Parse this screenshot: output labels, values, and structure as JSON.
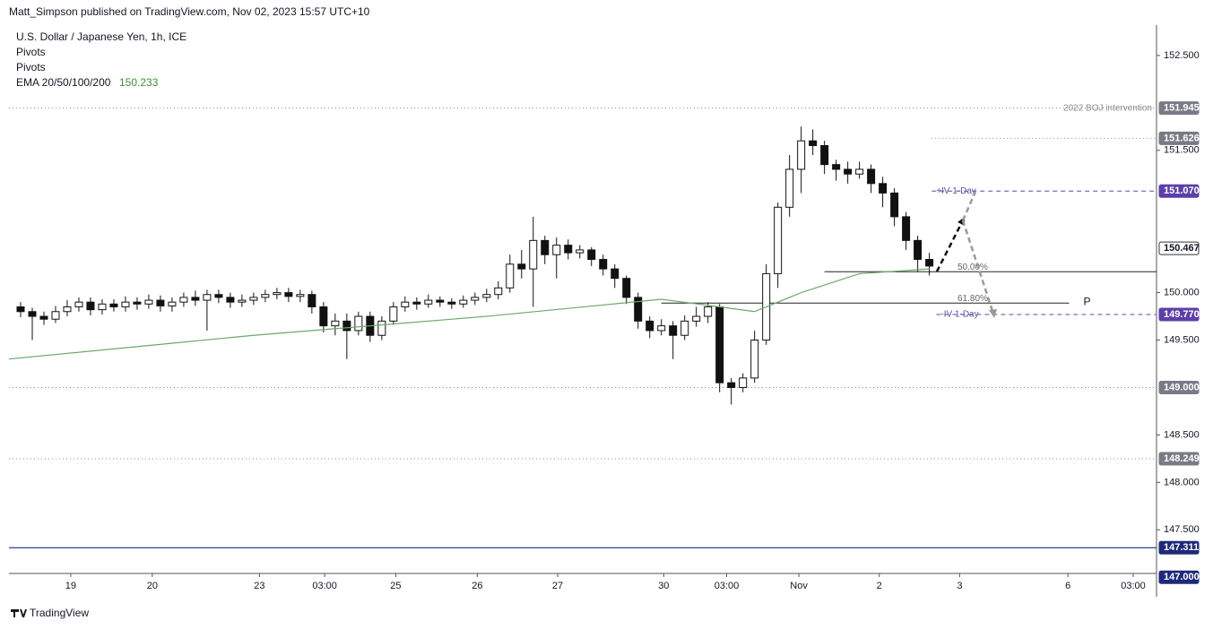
{
  "header": {
    "published": "Matt_Simpson published on TradingView.com, Nov 02, 2023 15:57 UTC+10",
    "symbol": "U.S. Dollar / Japanese Yen, 1h, ICE",
    "ind1": "Pivots",
    "ind2": "Pivots",
    "ema_name": "EMA 20/50/100/200",
    "ema_value": "150.233"
  },
  "footer": {
    "brand": "TradingView"
  },
  "chart_data": {
    "type": "candlestick",
    "ylim": [
      147.04,
      152.82
    ],
    "yticks": [
      {
        "value": 147.5,
        "label": "147.500"
      },
      {
        "value": 148,
        "label": "148.000"
      },
      {
        "value": 148.5,
        "label": "148.500"
      },
      {
        "value": 149.5,
        "label": "149.500"
      },
      {
        "value": 150,
        "label": "150.000"
      },
      {
        "value": 151.5,
        "label": "151.500"
      },
      {
        "value": 152.5,
        "label": "152.500"
      }
    ],
    "xlim": [
      -1,
      97.5
    ],
    "xticks": [
      {
        "value": 4.3,
        "label": "19"
      },
      {
        "value": 11.3,
        "label": "20"
      },
      {
        "value": 20.5,
        "label": "23"
      },
      {
        "value": 26.1,
        "label": "03:00"
      },
      {
        "value": 32.2,
        "label": "25"
      },
      {
        "value": 39.2,
        "label": "26"
      },
      {
        "value": 46.1,
        "label": "27"
      },
      {
        "value": 55.2,
        "label": "30"
      },
      {
        "value": 60.6,
        "label": "03:00"
      },
      {
        "value": 66.8,
        "label": "Nov"
      },
      {
        "value": 73.7,
        "label": "2"
      },
      {
        "value": 80.6,
        "label": "3"
      },
      {
        "value": 89.9,
        "label": "6"
      },
      {
        "value": 95.5,
        "label": "03:00"
      }
    ],
    "open": [
      149.85,
      149.8,
      149.75,
      149.72,
      149.8,
      149.85,
      149.9,
      149.82,
      149.88,
      149.85,
      149.9,
      149.88,
      149.92,
      149.86,
      149.9,
      149.95,
      149.92,
      149.98,
      149.95,
      149.9,
      149.92,
      149.95,
      149.98,
      150.0,
      149.96,
      149.98,
      149.85,
      149.65,
      149.7,
      149.6,
      149.75,
      149.55,
      149.7,
      149.85,
      149.9,
      149.88,
      149.92,
      149.9,
      149.88,
      149.92,
      149.95,
      149.98,
      150.05,
      150.3,
      150.25,
      150.55,
      150.4,
      150.5,
      150.42,
      150.45,
      150.35,
      150.25,
      150.15,
      149.95,
      149.7,
      149.6,
      149.65,
      149.55,
      149.7,
      149.75,
      149.85,
      149.05,
      149.0,
      149.1,
      149.5,
      150.2,
      150.9,
      151.3,
      151.6,
      151.55,
      151.35,
      151.3,
      151.25,
      151.3,
      151.15,
      151.05,
      150.8,
      150.55,
      150.35
    ],
    "high": [
      149.9,
      149.84,
      149.8,
      149.86,
      149.92,
      149.95,
      149.95,
      149.93,
      149.93,
      149.96,
      149.95,
      149.98,
      149.97,
      149.95,
      150.0,
      150.02,
      150.03,
      150.03,
      150.0,
      149.98,
      150.0,
      150.03,
      150.05,
      150.05,
      150.03,
      150.02,
      149.9,
      149.78,
      149.78,
      149.8,
      149.8,
      149.75,
      149.9,
      149.96,
      149.95,
      149.98,
      149.96,
      149.94,
      149.97,
      150.0,
      150.04,
      150.12,
      150.4,
      150.45,
      150.8,
      150.6,
      150.58,
      150.56,
      150.5,
      150.48,
      150.4,
      150.3,
      150.18,
      150.0,
      149.75,
      149.72,
      149.7,
      149.76,
      149.85,
      149.9,
      149.88,
      149.1,
      149.15,
      149.6,
      150.3,
      150.95,
      151.45,
      151.75,
      151.72,
      151.6,
      151.4,
      151.38,
      151.38,
      151.35,
      151.22,
      151.1,
      150.85,
      150.6,
      150.42
    ],
    "low": [
      149.74,
      149.5,
      149.66,
      149.68,
      149.75,
      149.8,
      149.76,
      149.77,
      149.8,
      149.8,
      149.82,
      149.83,
      149.8,
      149.8,
      149.85,
      149.86,
      149.6,
      149.89,
      149.84,
      149.85,
      149.87,
      149.9,
      149.93,
      149.9,
      149.9,
      149.78,
      149.58,
      149.55,
      149.3,
      149.55,
      149.48,
      149.5,
      149.66,
      149.8,
      149.82,
      149.84,
      149.85,
      149.83,
      149.84,
      149.87,
      149.9,
      149.93,
      150.0,
      150.15,
      149.85,
      150.3,
      150.15,
      150.35,
      150.36,
      150.28,
      150.18,
      150.05,
      149.88,
      149.62,
      149.52,
      149.55,
      149.3,
      149.5,
      149.64,
      149.68,
      148.95,
      148.82,
      148.95,
      149.05,
      149.45,
      150.05,
      150.8,
      151.05,
      151.45,
      151.25,
      151.18,
      151.15,
      151.2,
      151.05,
      150.9,
      150.7,
      150.45,
      150.22,
      150.18
    ],
    "close": [
      149.8,
      149.75,
      149.72,
      149.8,
      149.85,
      149.9,
      149.82,
      149.88,
      149.85,
      149.9,
      149.88,
      149.92,
      149.86,
      149.9,
      149.95,
      149.92,
      149.98,
      149.95,
      149.9,
      149.92,
      149.95,
      149.98,
      150.0,
      149.96,
      149.98,
      149.85,
      149.65,
      149.7,
      149.6,
      149.75,
      149.55,
      149.7,
      149.85,
      149.9,
      149.88,
      149.92,
      149.9,
      149.88,
      149.92,
      149.95,
      149.98,
      150.05,
      150.3,
      150.25,
      150.55,
      150.4,
      150.5,
      150.42,
      150.45,
      150.35,
      150.25,
      150.15,
      149.95,
      149.7,
      149.6,
      149.65,
      149.55,
      149.7,
      149.75,
      149.85,
      149.05,
      149.0,
      149.1,
      149.5,
      150.2,
      150.9,
      151.3,
      151.6,
      151.55,
      151.35,
      151.3,
      151.25,
      151.3,
      151.15,
      151.05,
      150.8,
      150.55,
      150.35,
      150.28
    ],
    "ema": {
      "color": "#6aa86a",
      "x": [
        -1,
        20,
        40,
        55,
        60,
        63,
        67,
        72,
        78
      ],
      "values": [
        149.3,
        149.55,
        149.75,
        149.93,
        149.85,
        149.8,
        150.0,
        150.2,
        150.25
      ]
    },
    "levels": [
      {
        "value": 151.945,
        "label": "151.945",
        "style": "dotted",
        "color": "#888888",
        "box": "#787b86",
        "x0": -1,
        "text": "2022 BOJ intervention"
      },
      {
        "value": 151.626,
        "label": "151.626",
        "style": "dotted",
        "color": "#888888",
        "box": "#787b86",
        "x0": 78.2
      },
      {
        "value": 151.07,
        "label": "151.070",
        "style": "dashed",
        "color": "#5d4fa0",
        "box": "#5d3fa8",
        "x0": 78.2,
        "text": "+IV 1-Day"
      },
      {
        "value": 150.467,
        "label": "150.467",
        "box": "#ffffff"
      },
      {
        "value": 149.77,
        "label": "149.770",
        "style": "dashed",
        "color": "#5d4fa0",
        "box": "#5d3fa8",
        "x0": 78.6,
        "text": "-IV 1-Day"
      },
      {
        "value": 149.0,
        "label": "149.000",
        "style": "dotted",
        "color": "#888888",
        "box": "#787b86",
        "x0": -1
      },
      {
        "value": 148.249,
        "label": "148.249",
        "style": "dotted",
        "color": "#888888",
        "box": "#787b86",
        "x0": -1
      },
      {
        "value": 147.311,
        "label": "147.311",
        "style": "solid",
        "color": "#1e2a78",
        "box": "#1e2a78",
        "x0": -1
      },
      {
        "value": 147.0,
        "label": "147.000",
        "box": "#1e2a78"
      }
    ],
    "fibs": [
      {
        "value": 150.22,
        "label": "50.00%",
        "x0": 69,
        "x1": 97.5
      },
      {
        "value": 149.89,
        "label": "61.80%",
        "x0": 55,
        "x1": 90,
        "tag": "P"
      }
    ]
  }
}
